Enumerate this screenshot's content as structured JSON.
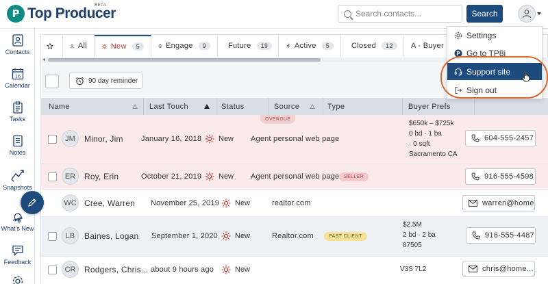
{
  "header": {
    "logo_text": "Top Producer",
    "logo_mark": "P",
    "beta": "BETA",
    "search_placeholder": "Search contacts...",
    "search_button": "Search"
  },
  "leftnav": [
    {
      "label": "Contacts",
      "icon": "contacts-icon"
    },
    {
      "label": "Calendar",
      "icon": "calendar-icon",
      "day": "16"
    },
    {
      "label": "Tasks",
      "icon": "tasks-icon"
    },
    {
      "label": "Notes",
      "icon": "notes-icon"
    },
    {
      "label": "Snapshots",
      "icon": "snapshots-icon"
    },
    {
      "label": "What's New",
      "icon": "bell-icon"
    },
    {
      "label": "Feedback",
      "icon": "feedback-icon"
    }
  ],
  "tabs": [
    {
      "label": "",
      "icon": "star-icon"
    },
    {
      "label": "All",
      "icon": "person-icon"
    },
    {
      "label": "New",
      "icon": "sun-icon",
      "count": "5",
      "active": true
    },
    {
      "label": "Engage",
      "icon": "engage-icon",
      "count": "9"
    },
    {
      "label": "Future",
      "icon": "history-icon",
      "count": "19"
    },
    {
      "label": "Active",
      "icon": "active-icon",
      "count": "5"
    },
    {
      "label": "Closed",
      "icon": "moneybag-icon",
      "count": "12"
    },
    {
      "label": "A - Buyer",
      "icon": ""
    }
  ],
  "toolbar": {
    "reminder_label": "90 day reminder"
  },
  "columns": {
    "name": "Name",
    "last_touch": "Last Touch",
    "status": "Status",
    "source": "Source",
    "type": "Type",
    "buyer_prefs": "Buyer Prefs"
  },
  "rows": [
    {
      "initials": "JM",
      "name": "Minor, Jim",
      "last_touch": "January 16, 2018",
      "status": "New",
      "source": "Agent personal web page",
      "badge": "OVERDUE",
      "type": "",
      "prefs": [
        "$650k – $725k",
        "0 bd · 1 ba",
        "· 0 sqft",
        "Sacramento CA"
      ],
      "action": "604-555-2457",
      "action_icon": "phone-icon"
    },
    {
      "initials": "ER",
      "name": "Roy, Erin",
      "last_touch": "October 21, 2019",
      "status": "New",
      "source": "Agent personal web page",
      "type": "SELLER",
      "prefs": [],
      "action": "916-555-4598",
      "action_icon": "phone-icon"
    },
    {
      "initials": "WC",
      "name": "Cree, Warren",
      "last_touch": "November 25, 2019",
      "status": "New",
      "source": "realtor.com",
      "type": "",
      "prefs": [],
      "action": "warren@home...",
      "action_icon": "mail-icon"
    },
    {
      "initials": "LB",
      "name": "Baines, Logan",
      "last_touch": "September 1, 2020",
      "status": "New",
      "source": "Realtor.com",
      "type": "PAST CLIENT",
      "prefs": [
        "$2.5M",
        "2 bd · 2 ba",
        "87505"
      ],
      "action": "916-555-4487",
      "action_icon": "phone-icon"
    },
    {
      "initials": "CR",
      "name": "Rodgers, Chris...",
      "last_touch": "about 9 hours ago",
      "status": "New",
      "source": "",
      "type": "",
      "prefs": [
        "V3S 7L2"
      ],
      "action": "chris@home...",
      "action_icon": "mail-icon"
    }
  ],
  "dropdown": [
    {
      "label": "Settings",
      "icon": "gear-icon"
    },
    {
      "label": "Go to TP8i",
      "icon": "tp-logo-icon"
    },
    {
      "label": "Support site",
      "icon": "headset-icon",
      "highlighted": true
    },
    {
      "label": "Sign out",
      "icon": "signout-icon"
    }
  ],
  "colors": {
    "brand": "#1d4b7d",
    "teal": "#0e8a84",
    "new_status": "#c0392b",
    "highlight_ring": "#d9642f"
  }
}
